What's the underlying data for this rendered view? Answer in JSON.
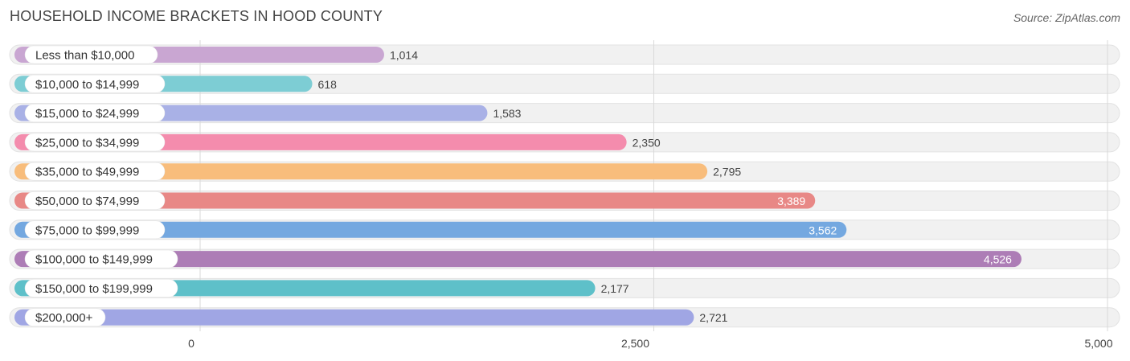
{
  "header": {
    "title": "HOUSEHOLD INCOME BRACKETS IN HOOD COUNTY",
    "source": "Source: ZipAtlas.com"
  },
  "chart_data": {
    "type": "bar",
    "orientation": "horizontal",
    "title": "HOUSEHOLD INCOME BRACKETS IN HOOD COUNTY",
    "xlim": [
      0,
      5000
    ],
    "xticks": [
      0,
      2500,
      5000
    ],
    "xtick_labels": [
      "0",
      "2,500",
      "5,000"
    ],
    "grid": true,
    "categories": [
      "Less than $10,000",
      "$10,000 to $14,999",
      "$15,000 to $24,999",
      "$25,000 to $34,999",
      "$35,000 to $49,999",
      "$50,000 to $74,999",
      "$75,000 to $99,999",
      "$100,000 to $149,999",
      "$150,000 to $199,999",
      "$200,000+"
    ],
    "values": [
      1014,
      618,
      1583,
      2350,
      2795,
      3389,
      3562,
      4526,
      2177,
      2721
    ],
    "value_labels": [
      "1,014",
      "618",
      "1,583",
      "2,350",
      "2,795",
      "3,389",
      "3,562",
      "4,526",
      "2,177",
      "2,721"
    ],
    "colors": [
      "#c9a6d2",
      "#7dcdd4",
      "#a9b1e6",
      "#f48cad",
      "#f8bd7c",
      "#e88886",
      "#74a8e0",
      "#ad7db6",
      "#5ec0c9",
      "#a0a6e4"
    ]
  }
}
